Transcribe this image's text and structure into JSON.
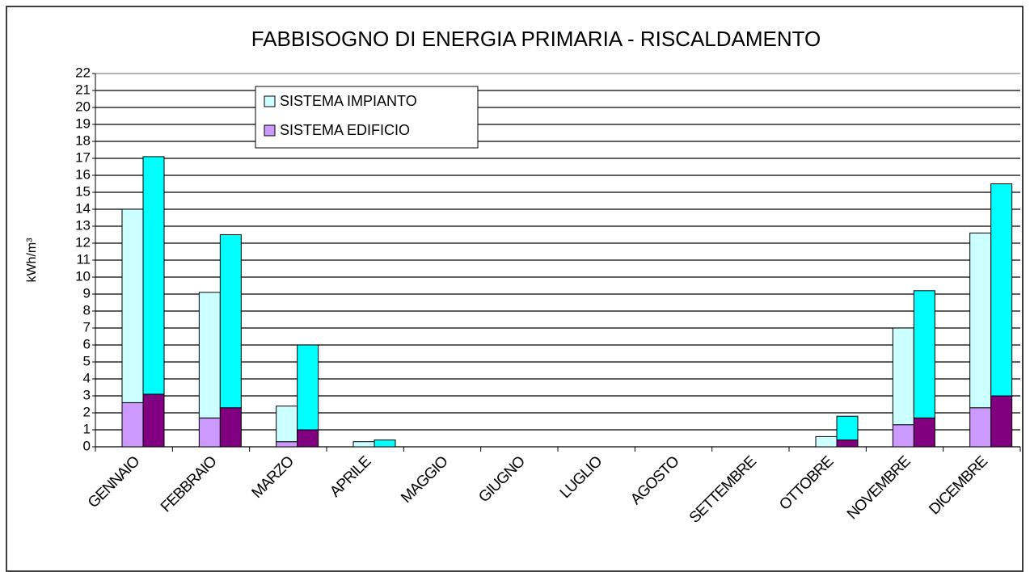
{
  "chart_data": {
    "type": "bar",
    "title": "FABBISOGNO DI ENERGIA PRIMARIA - RISCALDAMENTO",
    "y_label": "kWh/m³",
    "categories": [
      "GENNAIO",
      "FEBBRAIO",
      "MARZO",
      "APRILE",
      "MAGGIO",
      "GIUGNO",
      "LUGLIO",
      "AGOSTO",
      "SETTEMBRE",
      "OTTOBRE",
      "NOVEMBRE",
      "DICEMBRE"
    ],
    "stacks": [
      {
        "series": [
          {
            "name": "SISTEMA IMPIANTO",
            "color": "#ccffff",
            "values": [
              11.4,
              7.4,
              2.1,
              0.3,
              0,
              0,
              0,
              0,
              0,
              0.6,
              5.7,
              10.3
            ]
          },
          {
            "name": "SISTEMA EDIFICIO",
            "color": "#cc99ff",
            "values": [
              2.6,
              1.7,
              0.3,
              0,
              0,
              0,
              0,
              0,
              0,
              0,
              1.3,
              2.3
            ]
          }
        ]
      },
      {
        "series": [
          {
            "name": "SISTEMA IMPIANTO",
            "color": "#00ffff",
            "values": [
              14.0,
              10.2,
              5.0,
              0.4,
              0,
              0,
              0,
              0,
              0,
              1.4,
              7.5,
              12.5
            ]
          },
          {
            "name": "SISTEMA EDIFICIO",
            "color": "#800080",
            "values": [
              3.1,
              2.3,
              1.0,
              0,
              0,
              0,
              0,
              0,
              0,
              0.4,
              1.7,
              3.0
            ]
          }
        ]
      }
    ],
    "ylim": [
      0,
      22
    ],
    "yticks": [
      0,
      1,
      2,
      3,
      4,
      5,
      6,
      7,
      8,
      9,
      10,
      11,
      12,
      13,
      14,
      15,
      16,
      17,
      18,
      19,
      20,
      21,
      22
    ],
    "grid": true
  }
}
